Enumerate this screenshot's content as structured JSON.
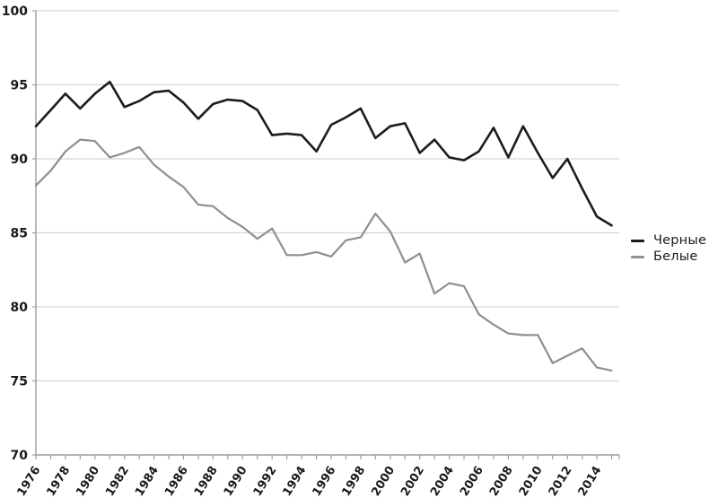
{
  "chart_data": {
    "type": "line",
    "title": "",
    "xlabel": "",
    "ylabel": "",
    "ylim": [
      70,
      100
    ],
    "yticks": [
      70,
      75,
      80,
      85,
      90,
      95,
      100
    ],
    "xtick_labels": [
      "1976",
      "1978",
      "1980",
      "1982",
      "1984",
      "1986",
      "1988",
      "1990",
      "1992",
      "1994",
      "1996",
      "1998",
      "2000",
      "2002",
      "2004",
      "2006",
      "2008",
      "2010",
      "2012",
      "2014"
    ],
    "grid": "horizontal",
    "legend_position": "right",
    "x": [
      1976,
      1977,
      1978,
      1979,
      1980,
      1981,
      1982,
      1983,
      1984,
      1985,
      1986,
      1987,
      1988,
      1989,
      1990,
      1991,
      1992,
      1993,
      1994,
      1995,
      1996,
      1997,
      1998,
      1999,
      2000,
      2001,
      2002,
      2003,
      2004,
      2005,
      2006,
      2007,
      2008,
      2009,
      2010,
      2011,
      2012,
      2013,
      2014,
      2015
    ],
    "series": [
      {
        "name": "Черные",
        "color": "#1c1c1c",
        "stroke_width": 2.6,
        "values": [
          92.2,
          93.3,
          94.4,
          93.4,
          94.4,
          95.2,
          93.5,
          93.9,
          94.5,
          94.6,
          93.8,
          92.7,
          93.7,
          94.0,
          93.9,
          93.3,
          91.6,
          91.7,
          91.6,
          90.5,
          92.3,
          92.8,
          93.4,
          91.4,
          92.2,
          92.4,
          90.4,
          91.3,
          90.1,
          89.9,
          90.5,
          92.1,
          90.1,
          92.2,
          90.4,
          88.7,
          90.0,
          88.0,
          86.1,
          85.5
        ]
      },
      {
        "name": "Белые",
        "color": "#8f8f8f",
        "stroke_width": 2.2,
        "values": [
          88.2,
          89.2,
          90.5,
          91.3,
          91.2,
          90.1,
          90.4,
          90.8,
          89.6,
          88.8,
          88.1,
          86.9,
          86.8,
          86.0,
          85.4,
          84.6,
          85.3,
          83.5,
          83.5,
          83.7,
          83.4,
          84.5,
          84.7,
          86.3,
          85.1,
          83.0,
          83.6,
          80.9,
          81.6,
          81.4,
          79.5,
          78.8,
          78.2,
          78.1,
          78.1,
          76.2,
          76.7,
          77.2,
          75.9,
          75.7
        ]
      }
    ],
    "axis_color": "#9c9c9c",
    "gridline_color": "#d6d6d6",
    "tick_label_color": "#1a1a1a"
  }
}
